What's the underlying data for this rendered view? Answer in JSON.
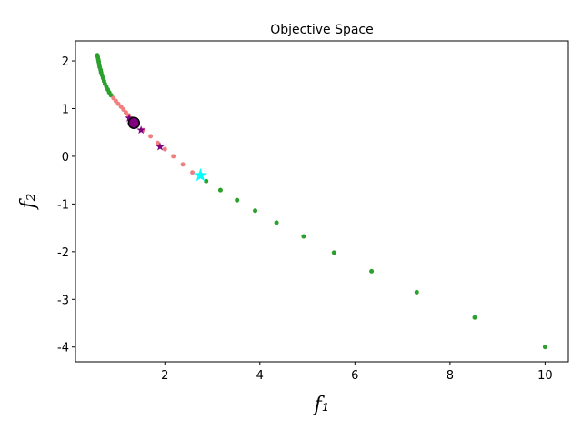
{
  "chart_data": {
    "type": "scatter",
    "title": "Objective Space",
    "x_label": "f₁",
    "y_label": "f₂",
    "xlim": [
      0.12,
      10.49
    ],
    "ylim": [
      -4.31,
      2.42
    ],
    "xticks": [
      2,
      4,
      6,
      8,
      10
    ],
    "yticks": [
      -4,
      -3,
      -2,
      -1,
      0,
      1,
      2
    ],
    "series": [
      {
        "color": "#2ca02c",
        "marker": "circle",
        "size": 2.5,
        "x": [
          0.58,
          0.59,
          0.6,
          0.61,
          0.62,
          0.63,
          0.65,
          0.66,
          0.68,
          0.7,
          0.72,
          0.74,
          0.77,
          0.8,
          0.83,
          0.87,
          2.87,
          3.17,
          3.52,
          3.9,
          4.35,
          4.92,
          5.56,
          6.35,
          7.3,
          8.52,
          10.0
        ],
        "values": [
          2.12,
          2.08,
          2.03,
          1.98,
          1.92,
          1.87,
          1.81,
          1.76,
          1.7,
          1.64,
          1.58,
          1.52,
          1.46,
          1.4,
          1.34,
          1.28,
          -0.52,
          -0.71,
          -0.92,
          -1.14,
          -1.39,
          -1.68,
          -2.02,
          -2.41,
          -2.85,
          -3.38,
          -4.0
        ]
      },
      {
        "color": "#f08080",
        "marker": "circle",
        "size": 2.5,
        "x": [
          0.92,
          0.97,
          1.02,
          1.08,
          1.13,
          1.18,
          1.24,
          1.3,
          1.4,
          1.55,
          1.7,
          1.85,
          2.0,
          2.18,
          2.38,
          2.58
        ],
        "values": [
          1.22,
          1.16,
          1.1,
          1.04,
          0.98,
          0.92,
          0.86,
          0.79,
          0.7,
          0.55,
          0.42,
          0.28,
          0.15,
          0.0,
          -0.17,
          -0.34
        ]
      },
      {
        "color": "#800080",
        "marker": "star",
        "size": 5,
        "x": [
          1.25,
          1.5,
          1.9
        ],
        "values": [
          0.8,
          0.55,
          0.2
        ]
      },
      {
        "color": "#800080",
        "marker": "circle",
        "size": 6,
        "x": [
          1.35
        ],
        "values": [
          0.7
        ]
      },
      {
        "color": "#00ffff",
        "marker": "star",
        "size": 8,
        "x": [
          2.75
        ],
        "values": [
          -0.4
        ]
      }
    ]
  }
}
